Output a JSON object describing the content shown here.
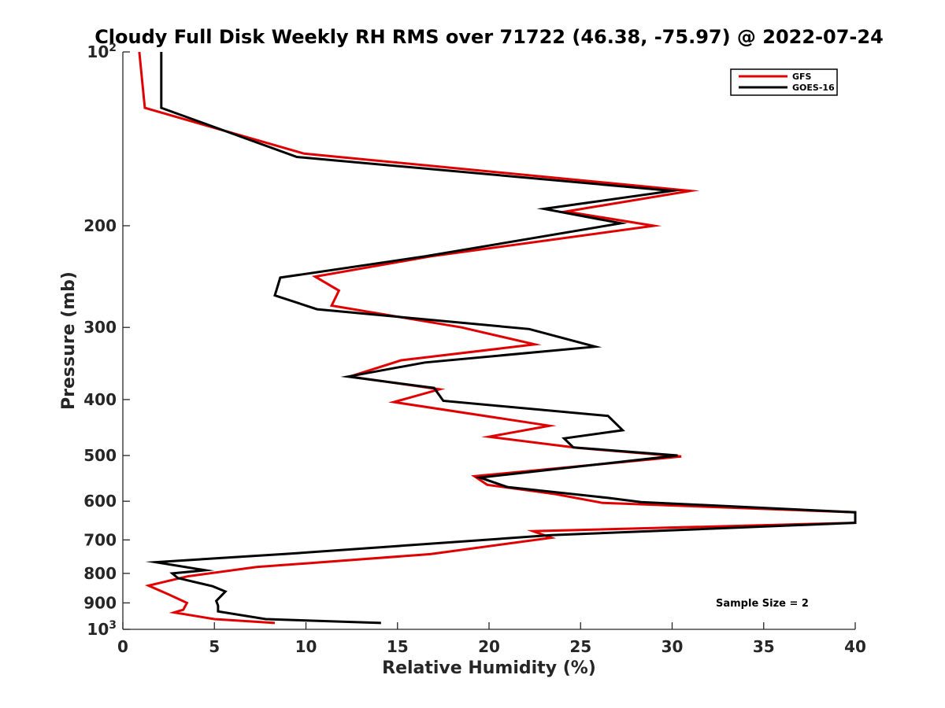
{
  "chart_data": {
    "type": "line",
    "title": "Cloudy Full Disk Weekly RH RMS over 71722 (46.38, -75.97) @ 2022-07-24",
    "xlabel": "Relative Humidity (%)",
    "ylabel": "Pressure (mb)",
    "xlim": [
      0,
      40
    ],
    "ylim": [
      100,
      1000
    ],
    "y_scale": "log",
    "y_direction": "reverse",
    "x_ticks": [
      0,
      5,
      10,
      15,
      20,
      25,
      30,
      35,
      40
    ],
    "x_tick_labels": [
      "0",
      "5",
      "10",
      "15",
      "20",
      "25",
      "30",
      "35",
      "40"
    ],
    "y_ticks": [
      100,
      200,
      300,
      400,
      500,
      600,
      700,
      800,
      900,
      1000
    ],
    "y_tick_labels": [
      {
        "base": "10",
        "exp": "2"
      },
      {
        "base": "200",
        "exp": ""
      },
      {
        "base": "300",
        "exp": ""
      },
      {
        "base": "400",
        "exp": ""
      },
      {
        "base": "500",
        "exp": ""
      },
      {
        "base": "600",
        "exp": ""
      },
      {
        "base": "700",
        "exp": ""
      },
      {
        "base": "800",
        "exp": ""
      },
      {
        "base": "900",
        "exp": ""
      },
      {
        "base": "10",
        "exp": "3"
      }
    ],
    "legend_position": "top-right",
    "annotation": "Sample Size = 2",
    "series": [
      {
        "name": "GFS",
        "color": "#e00000",
        "points": [
          [
            0.9,
            100
          ],
          [
            1.2,
            125
          ],
          [
            9.9,
            150
          ],
          [
            31.0,
            174
          ],
          [
            24.2,
            189
          ],
          [
            29.0,
            200
          ],
          [
            16.8,
            226
          ],
          [
            10.5,
            245
          ],
          [
            11.8,
            259
          ],
          [
            11.4,
            275
          ],
          [
            18.5,
            300
          ],
          [
            22.5,
            321
          ],
          [
            15.2,
            342
          ],
          [
            12.4,
            365
          ],
          [
            17.3,
            384
          ],
          [
            14.8,
            404
          ],
          [
            23.3,
            444
          ],
          [
            20.0,
            464
          ],
          [
            24.8,
            485
          ],
          [
            30.5,
            502
          ],
          [
            19.2,
            543
          ],
          [
            19.9,
            562
          ],
          [
            23.6,
            583
          ],
          [
            26.2,
            604
          ],
          [
            40.0,
            627
          ],
          [
            40.0,
            654
          ],
          [
            22.4,
            676
          ],
          [
            23.4,
            694
          ],
          [
            16.8,
            741
          ],
          [
            7.3,
            780
          ],
          [
            3.5,
            810
          ],
          [
            1.4,
            840
          ],
          [
            2.5,
            870
          ],
          [
            3.5,
            900
          ],
          [
            3.3,
            925
          ],
          [
            2.8,
            935
          ],
          [
            5.0,
            960
          ],
          [
            8.3,
            975
          ]
        ]
      },
      {
        "name": "GOES-16",
        "color": "#000000",
        "points": [
          [
            2.1,
            100
          ],
          [
            2.1,
            125
          ],
          [
            9.5,
            152
          ],
          [
            30.0,
            174
          ],
          [
            23.0,
            187
          ],
          [
            27.2,
            198
          ],
          [
            16.5,
            226
          ],
          [
            8.6,
            246
          ],
          [
            8.3,
            264
          ],
          [
            10.6,
            279
          ],
          [
            22.2,
            302
          ],
          [
            25.8,
            324
          ],
          [
            16.5,
            345
          ],
          [
            12.3,
            365
          ],
          [
            17.0,
            382
          ],
          [
            17.5,
            402
          ],
          [
            26.5,
            427
          ],
          [
            27.3,
            452
          ],
          [
            24.1,
            467
          ],
          [
            24.6,
            484
          ],
          [
            30.3,
            500
          ],
          [
            19.5,
            546
          ],
          [
            21.0,
            567
          ],
          [
            26.5,
            592
          ],
          [
            28.3,
            602
          ],
          [
            40.0,
            627
          ],
          [
            40.0,
            654
          ],
          [
            23.4,
            687
          ],
          [
            9.0,
            740
          ],
          [
            1.8,
            765
          ],
          [
            4.5,
            790
          ],
          [
            2.7,
            800
          ],
          [
            3.0,
            815
          ],
          [
            4.9,
            842
          ],
          [
            5.6,
            860
          ],
          [
            5.1,
            893
          ],
          [
            5.2,
            910
          ],
          [
            5.2,
            931
          ],
          [
            7.8,
            960
          ],
          [
            14.1,
            975
          ]
        ]
      }
    ]
  }
}
